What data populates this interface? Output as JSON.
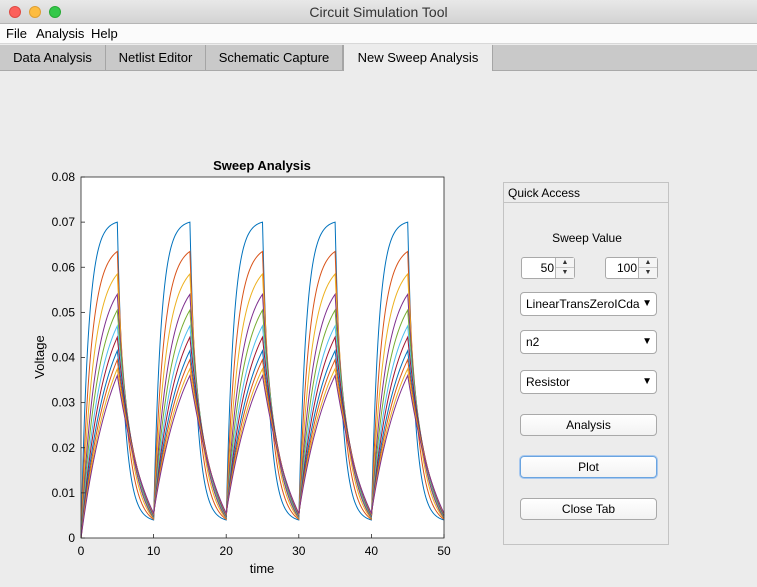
{
  "window": {
    "title": "Circuit Simulation Tool"
  },
  "menu": [
    "File",
    "Analysis",
    "Help"
  ],
  "tabs": [
    {
      "label": "Data Analysis",
      "active": false
    },
    {
      "label": "Netlist Editor",
      "active": false
    },
    {
      "label": "Schematic Capture",
      "active": false
    },
    {
      "label": "New Sweep Analysis",
      "active": true
    }
  ],
  "quick_access": {
    "title": "Quick Access",
    "sweep_label": "Sweep Value",
    "sweep_start": "50",
    "sweep_end": "100",
    "component_select": "LinearTransZeroICda",
    "node_select": "n2",
    "element_select": "Resistor",
    "analysis_button": "Analysis",
    "plot_button": "Plot",
    "close_button": "Close Tab"
  },
  "chart_data": {
    "type": "line",
    "title": "Sweep Analysis",
    "xlabel": "time",
    "ylabel": "Voltage",
    "xlim": [
      0,
      50
    ],
    "ylim": [
      0,
      0.08
    ],
    "xticks": [
      "0",
      "10",
      "20",
      "30",
      "40",
      "50"
    ],
    "yticks": [
      "0",
      "0.01",
      "0.02",
      "0.03",
      "0.04",
      "0.05",
      "0.06",
      "0.07",
      "0.08"
    ],
    "period": 10,
    "peak_time": 5,
    "series_peaks": [
      0.07,
      0.0635,
      0.0585,
      0.054,
      0.0505,
      0.047,
      0.0445,
      0.0415,
      0.0395,
      0.0375,
      0.036
    ],
    "series_colors": [
      "#0072bd",
      "#d95319",
      "#edb120",
      "#7e2f8e",
      "#77ac30",
      "#4dbeee",
      "#a2142f",
      "#0072bd",
      "#d95319",
      "#edb120",
      "#7e2f8e"
    ],
    "grid": false
  }
}
